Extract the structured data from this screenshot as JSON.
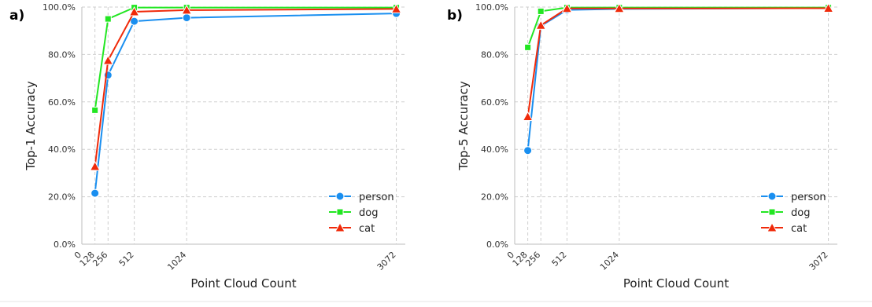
{
  "chart_data": [
    {
      "type": "line",
      "panel_label": "a)",
      "xlabel": "Point Cloud Count",
      "ylabel": "Top-1 Accuracy",
      "x": [
        128,
        256,
        512,
        1024,
        3072
      ],
      "x_ticks": [
        0,
        128,
        256,
        512,
        1024,
        3072
      ],
      "xlim": [
        0,
        3160
      ],
      "ylim": [
        0,
        100
      ],
      "y_ticks": [
        0,
        20,
        40,
        60,
        80,
        100
      ],
      "y_tick_labels": [
        "0.0%",
        "20.0%",
        "40.0%",
        "60.0%",
        "80.0%",
        "100.0%"
      ],
      "grid": true,
      "legend_position": "bottom-right",
      "series": [
        {
          "name": "person",
          "color": "#1a8ff0",
          "marker": "circle",
          "values": [
            21.5,
            71.3,
            94.0,
            95.5,
            97.3
          ]
        },
        {
          "name": "dog",
          "color": "#22e622",
          "marker": "square",
          "values": [
            56.5,
            95.0,
            99.8,
            99.8,
            99.8
          ]
        },
        {
          "name": "cat",
          "color": "#f02a0a",
          "marker": "triangle",
          "values": [
            32.8,
            77.5,
            98.0,
            98.7,
            99.2
          ]
        }
      ]
    },
    {
      "type": "line",
      "panel_label": "b)",
      "xlabel": "Point Cloud Count",
      "ylabel": "Top-5 Accuracy",
      "x": [
        128,
        256,
        512,
        1024,
        3072
      ],
      "x_ticks": [
        0,
        128,
        256,
        512,
        1024,
        3072
      ],
      "xlim": [
        0,
        3160
      ],
      "ylim": [
        0,
        100
      ],
      "y_ticks": [
        0,
        20,
        40,
        60,
        80,
        100
      ],
      "y_tick_labels": [
        "0.0%",
        "20.0%",
        "40.0%",
        "60.0%",
        "80.0%",
        "100.0%"
      ],
      "grid": true,
      "legend_position": "bottom-right",
      "series": [
        {
          "name": "person",
          "color": "#1a8ff0",
          "marker": "circle",
          "values": [
            39.5,
            92.0,
            98.8,
            99.2,
            99.6
          ]
        },
        {
          "name": "dog",
          "color": "#22e622",
          "marker": "square",
          "values": [
            83.0,
            98.2,
            99.8,
            99.8,
            99.8
          ]
        },
        {
          "name": "cat",
          "color": "#f02a0a",
          "marker": "triangle",
          "values": [
            53.8,
            92.3,
            99.4,
            99.4,
            99.5
          ]
        }
      ]
    }
  ]
}
